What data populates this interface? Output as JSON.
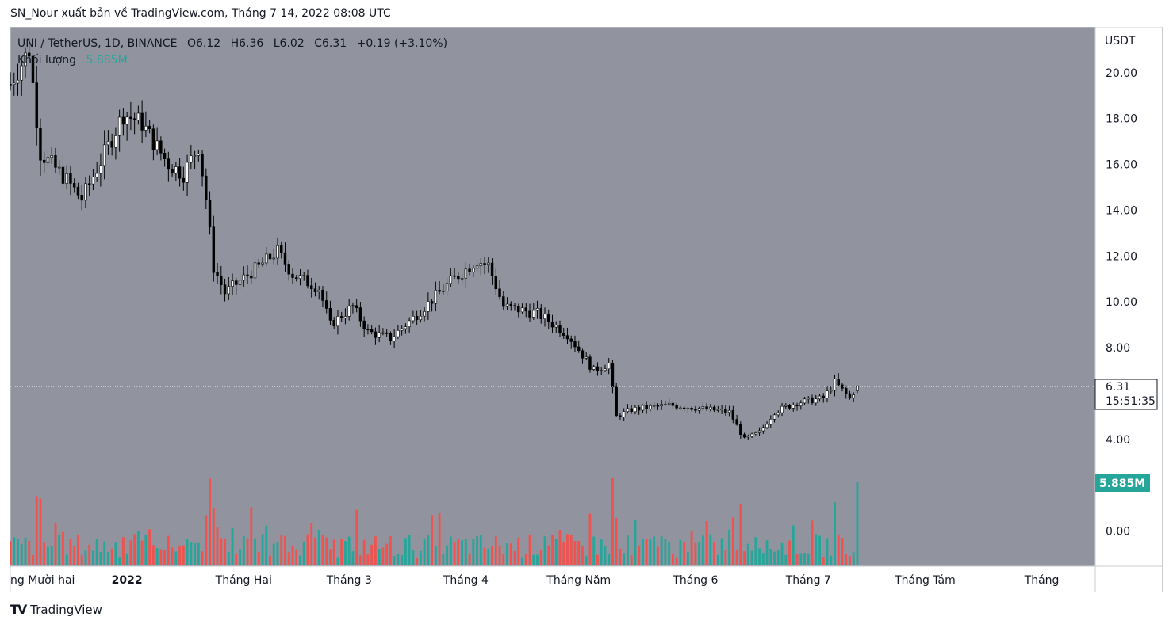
{
  "header": {
    "author": "SN_Nour",
    "published_text": "xuất bản về TradingView.com, Tháng 7 14, 2022 08:08 UTC"
  },
  "legend": {
    "symbol": "UNI / TetherUS, 1D, BINANCE",
    "open": "O6.12",
    "high": "H6.36",
    "low": "L6.02",
    "close": "C6.31",
    "change": "+0.19 (+3.10%)",
    "volume_label": "Khối lượng",
    "volume_value": "5.885M"
  },
  "price_scale": {
    "currency": "USDT",
    "ticks": [
      "20.00",
      "18.00",
      "16.00",
      "14.00",
      "12.00",
      "10.00",
      "8.00",
      "4.00",
      "0.00"
    ],
    "last_price": "6.31",
    "countdown": "15:51:35",
    "volume_badge": "5.885M"
  },
  "time_scale": {
    "labels": [
      "ng Mười hai",
      "2022",
      "Tháng Hai",
      "Tháng 3",
      "Tháng 4",
      "Tháng Năm",
      "Tháng 6",
      "Tháng 7",
      "Tháng Tám",
      "Tháng"
    ]
  },
  "colors": {
    "background": "#91949e",
    "up_body": "#ffffff",
    "down_body": "#000000",
    "wick": "#000000",
    "volume_up": "#26a69a",
    "volume_down": "#ef5350",
    "badge_volume": "#26a69a"
  },
  "footer": {
    "brand": "TradingView"
  },
  "chart_data": {
    "type": "candlestick",
    "y_axis_unit": "USDT",
    "ylim": [
      -1.5,
      22
    ],
    "x_range": [
      "2021-12-01",
      "2022-09-15"
    ],
    "grid": false,
    "anchor_closes": [
      [
        "2021-12-01",
        19.5
      ],
      [
        "2021-12-06",
        21.0
      ],
      [
        "2021-12-09",
        16.5
      ],
      [
        "2021-12-15",
        15.5
      ],
      [
        "2021-12-20",
        14.5
      ],
      [
        "2021-12-27",
        16.8
      ],
      [
        "2021-12-31",
        18.2
      ],
      [
        "2022-01-05",
        17.8
      ],
      [
        "2022-01-08",
        17.0
      ],
      [
        "2022-01-12",
        16.0
      ],
      [
        "2022-01-16",
        15.6
      ],
      [
        "2022-01-20",
        16.8
      ],
      [
        "2022-01-22",
        14.5
      ],
      [
        "2022-01-24",
        11.5
      ],
      [
        "2022-01-27",
        10.4
      ],
      [
        "2022-02-03",
        11.3
      ],
      [
        "2022-02-10",
        12.2
      ],
      [
        "2022-02-14",
        11.2
      ],
      [
        "2022-02-21",
        10.6
      ],
      [
        "2022-02-24",
        9.0
      ],
      [
        "2022-03-02",
        9.8
      ],
      [
        "2022-03-06",
        8.7
      ],
      [
        "2022-03-12",
        8.4
      ],
      [
        "2022-03-18",
        9.3
      ],
      [
        "2022-03-28",
        10.9
      ],
      [
        "2022-04-04",
        11.8
      ],
      [
        "2022-04-07",
        11.6
      ],
      [
        "2022-04-11",
        9.8
      ],
      [
        "2022-04-20",
        9.5
      ],
      [
        "2022-04-28",
        8.6
      ],
      [
        "2022-05-05",
        7.0
      ],
      [
        "2022-05-09",
        7.3
      ],
      [
        "2022-05-11",
        5.0
      ],
      [
        "2022-05-15",
        5.3
      ],
      [
        "2022-05-25",
        5.5
      ],
      [
        "2022-06-05",
        5.3
      ],
      [
        "2022-06-10",
        5.2
      ],
      [
        "2022-06-14",
        4.0
      ],
      [
        "2022-06-18",
        4.3
      ],
      [
        "2022-06-22",
        5.2
      ],
      [
        "2022-06-28",
        5.6
      ],
      [
        "2022-07-05",
        5.8
      ],
      [
        "2022-07-08",
        6.5
      ],
      [
        "2022-07-12",
        5.8
      ],
      [
        "2022-07-14",
        6.31
      ]
    ],
    "last_candle": {
      "date": "2022-07-14",
      "open": 6.12,
      "high": 6.36,
      "low": 6.02,
      "close": 6.31
    },
    "volume_last": "5.885M"
  }
}
